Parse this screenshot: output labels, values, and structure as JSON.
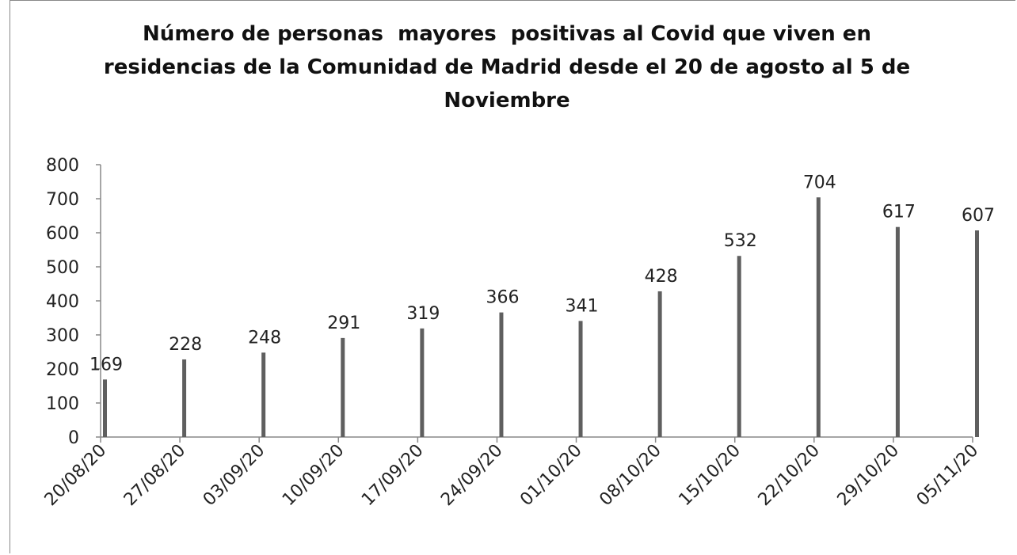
{
  "chart_data": {
    "type": "bar",
    "title": "Número de personas  mayores  positivas al Covid que viven en residencias de la Comunidad de Madrid desde el 20 de agosto al 5 de Noviembre",
    "categories": [
      "20/08/20",
      "27/08/20",
      "03/09/20",
      "10/09/20",
      "17/09/20",
      "24/09/20",
      "01/10/20",
      "08/10/20",
      "15/10/20",
      "22/10/20",
      "29/10/20",
      "05/11/20"
    ],
    "values": [
      169,
      228,
      248,
      291,
      319,
      366,
      341,
      428,
      532,
      704,
      617,
      607
    ],
    "color": "#5f5f5f",
    "ylim": [
      0,
      800
    ],
    "yticks": [
      0,
      100,
      200,
      300,
      400,
      500,
      600,
      700,
      800
    ],
    "grid": false
  }
}
